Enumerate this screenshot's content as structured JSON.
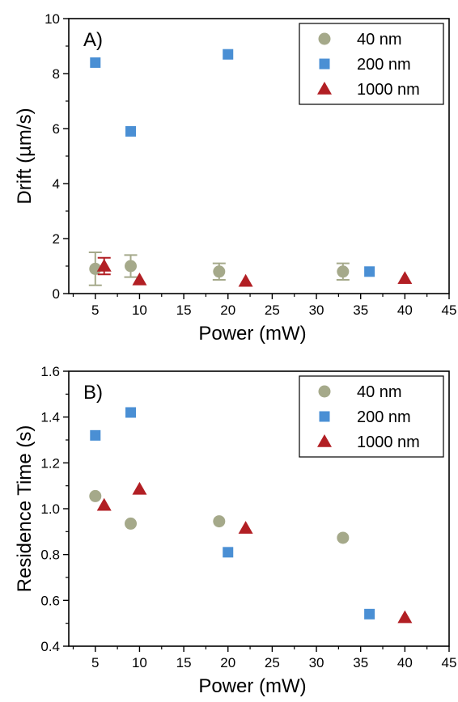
{
  "chart_data": [
    {
      "type": "scatter",
      "panel_label": "A)",
      "xlabel": "Power (mW)",
      "ylabel": "Drift (µm/s)",
      "xlim": [
        2,
        45
      ],
      "ylim": [
        0,
        10
      ],
      "xticks": [
        5,
        10,
        15,
        20,
        25,
        30,
        35,
        40,
        45
      ],
      "yticks": [
        0,
        2,
        4,
        6,
        8,
        10
      ],
      "grid": false,
      "legend": "top-right",
      "series": [
        {
          "name": "40 nm",
          "marker": "circle",
          "color": "#a5a98a",
          "points": [
            {
              "x": 5,
              "y": 0.9,
              "err": 0.6
            },
            {
              "x": 9,
              "y": 1.0,
              "err": 0.4
            },
            {
              "x": 19,
              "y": 0.8,
              "err": 0.3
            },
            {
              "x": 33,
              "y": 0.8,
              "err": 0.3
            }
          ]
        },
        {
          "name": "200 nm",
          "marker": "square",
          "color": "#4a8fd4",
          "points": [
            {
              "x": 5,
              "y": 8.4
            },
            {
              "x": 9,
              "y": 5.9
            },
            {
              "x": 20,
              "y": 8.7
            },
            {
              "x": 36,
              "y": 0.8
            }
          ]
        },
        {
          "name": "1000 nm",
          "marker": "triangle",
          "color": "#b21f24",
          "points": [
            {
              "x": 6,
              "y": 1.0,
              "err": 0.3
            },
            {
              "x": 10,
              "y": 0.5
            },
            {
              "x": 22,
              "y": 0.45
            },
            {
              "x": 40,
              "y": 0.55
            }
          ]
        }
      ]
    },
    {
      "type": "scatter",
      "panel_label": "B)",
      "xlabel": "Power (mW)",
      "ylabel": "Residence Time (s)",
      "xlim": [
        2,
        45
      ],
      "ylim": [
        0.4,
        1.6
      ],
      "xticks": [
        5,
        10,
        15,
        20,
        25,
        30,
        35,
        40,
        45
      ],
      "yticks": [
        0.4,
        0.6,
        0.8,
        1.0,
        1.2,
        1.4,
        1.6
      ],
      "grid": false,
      "legend": "top-right",
      "series": [
        {
          "name": "40 nm",
          "marker": "circle",
          "color": "#a5a98a",
          "points": [
            {
              "x": 5,
              "y": 1.055
            },
            {
              "x": 9,
              "y": 0.935
            },
            {
              "x": 19,
              "y": 0.945
            },
            {
              "x": 33,
              "y": 0.873
            }
          ]
        },
        {
          "name": "200 nm",
          "marker": "square",
          "color": "#4a8fd4",
          "points": [
            {
              "x": 5,
              "y": 1.32
            },
            {
              "x": 9,
              "y": 1.42
            },
            {
              "x": 20,
              "y": 0.81
            },
            {
              "x": 36,
              "y": 0.54
            }
          ]
        },
        {
          "name": "1000 nm",
          "marker": "triangle",
          "color": "#b21f24",
          "points": [
            {
              "x": 6,
              "y": 1.015
            },
            {
              "x": 10,
              "y": 1.085
            },
            {
              "x": 22,
              "y": 0.915
            },
            {
              "x": 40,
              "y": 0.525
            }
          ]
        }
      ]
    }
  ]
}
